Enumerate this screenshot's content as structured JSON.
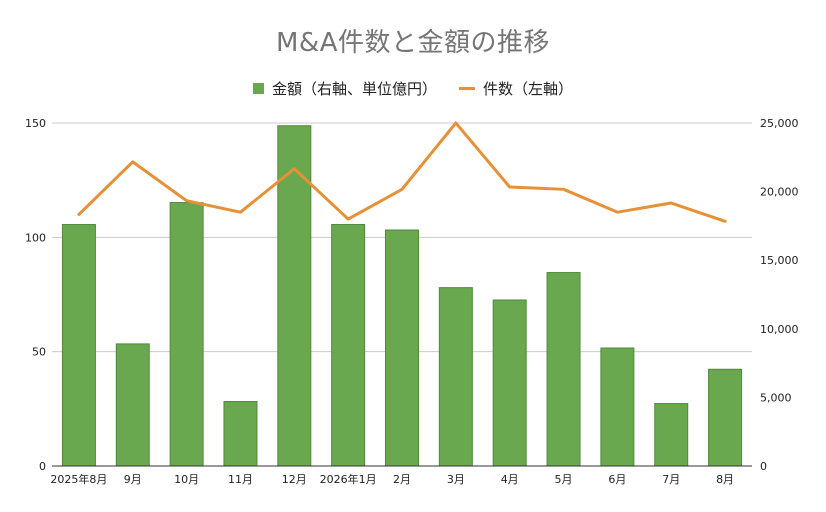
{
  "chart_data": {
    "type": "bar",
    "title": "M&A件数と金額の推移",
    "categories": [
      "2025年8月",
      "9月",
      "10月",
      "11月",
      "12月",
      "2026年1月",
      "2月",
      "3月",
      "4月",
      "5月",
      "6月",
      "7月",
      "8月"
    ],
    "series": [
      {
        "name": "金額（右軸、単位億円）",
        "type": "bar",
        "axis": "right",
        "color": "#6aa84f",
        "values": [
          17600,
          8900,
          19200,
          4700,
          24800,
          17600,
          17200,
          13000,
          12100,
          14100,
          8600,
          4550,
          7050
        ]
      },
      {
        "name": "件数（左軸）",
        "type": "line",
        "axis": "left",
        "color": "#e69138",
        "values": [
          110,
          133,
          116,
          111,
          130,
          108,
          121,
          150,
          122,
          121,
          111,
          115,
          107
        ]
      }
    ],
    "left_axis": {
      "min": 0,
      "max": 150,
      "ticks": [
        "0",
        "50",
        "100",
        "150"
      ]
    },
    "right_axis": {
      "min": 0,
      "max": 25000,
      "ticks": [
        "0",
        "5,000",
        "10,000",
        "15,000",
        "20,000",
        "25,000"
      ]
    },
    "grid": true,
    "legend_position": "top"
  }
}
